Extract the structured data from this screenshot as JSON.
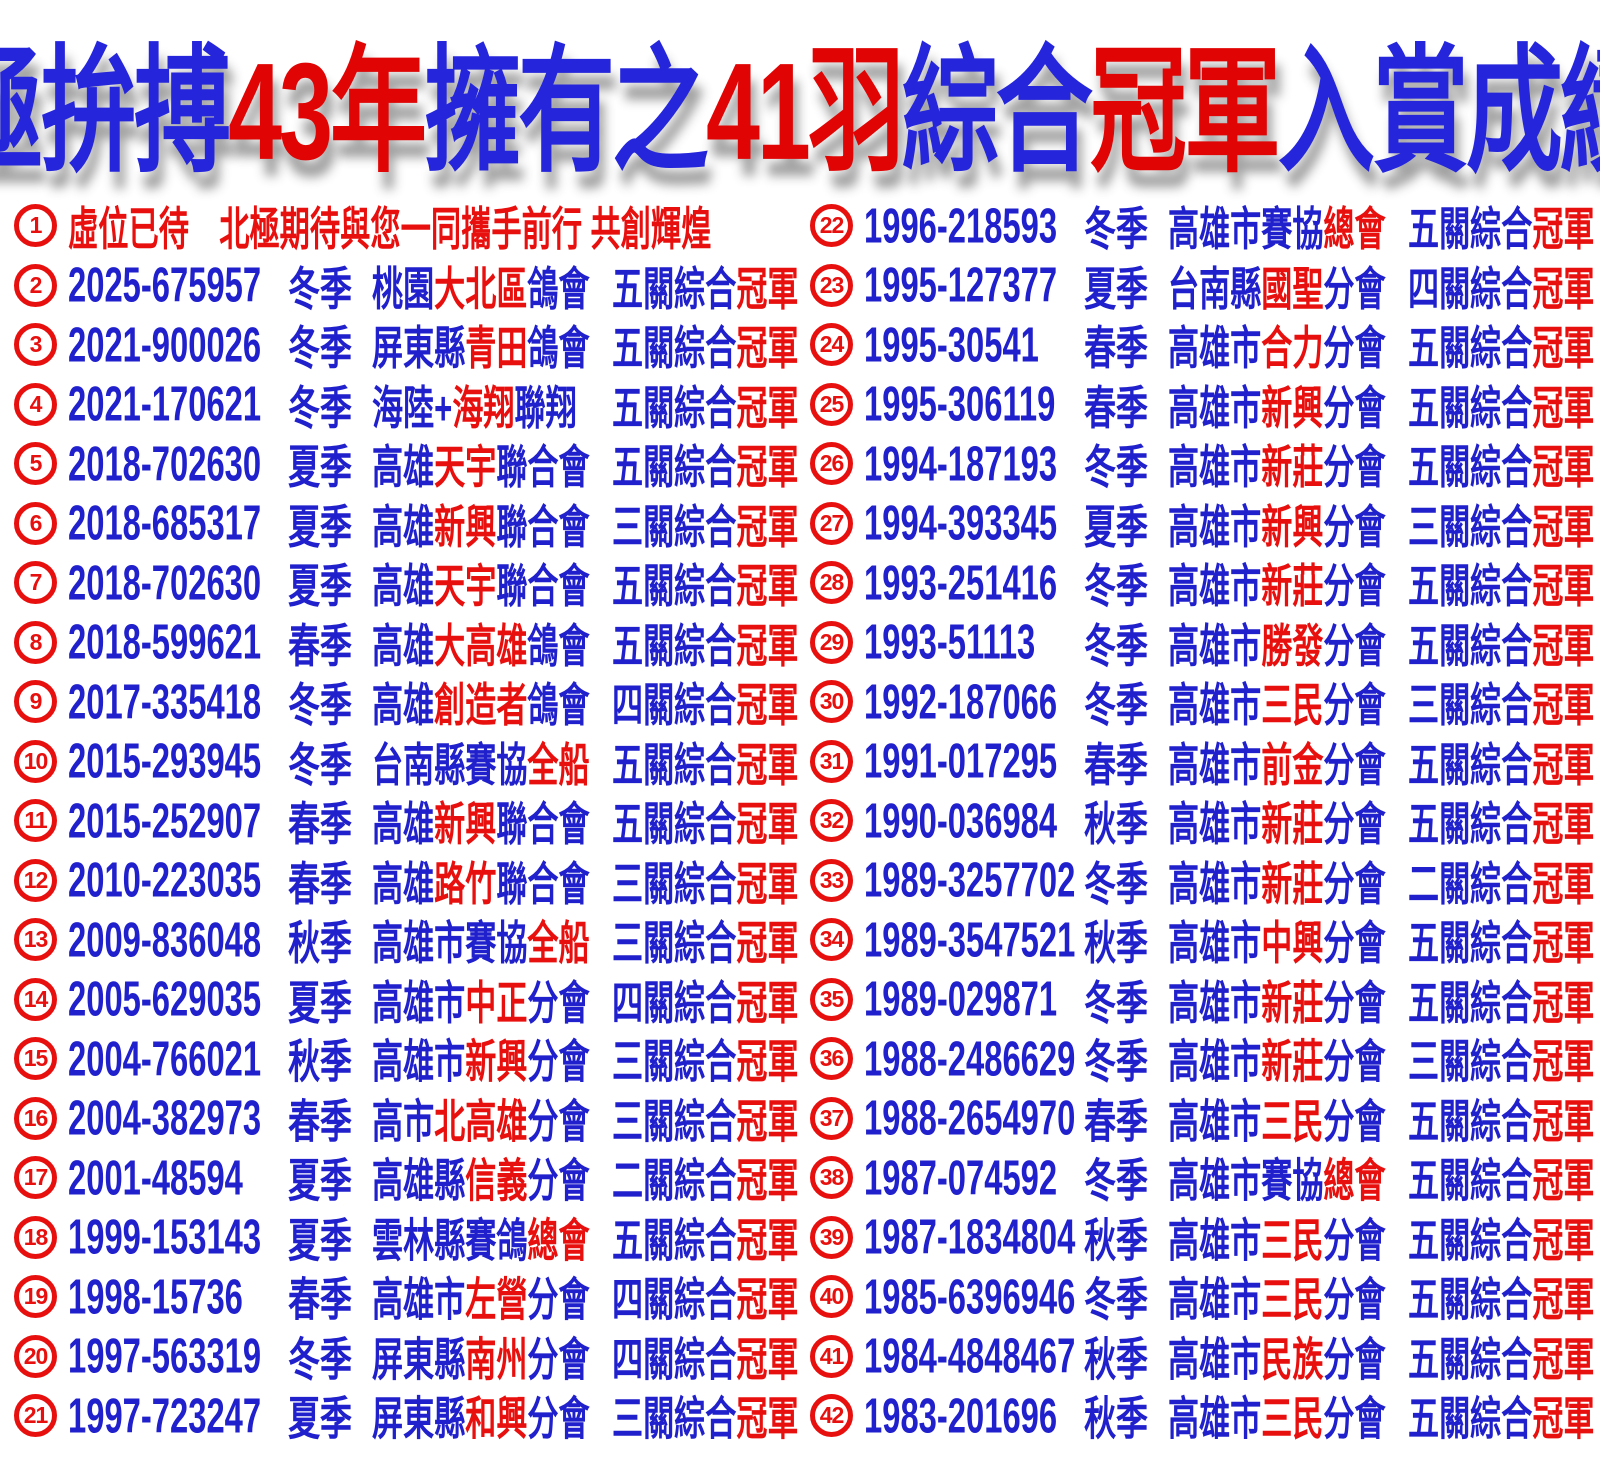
{
  "colors": {
    "blue": "#2020cc",
    "red": "#e8100e",
    "title_blue": "#2525dc",
    "title_red": "#e00404"
  },
  "title": {
    "segments": [
      [
        "北極拚搏",
        "b"
      ],
      [
        "43年",
        "r"
      ],
      [
        "擁有之",
        "b"
      ],
      [
        "41羽",
        "r"
      ],
      [
        "綜合",
        "b"
      ],
      [
        "冠軍",
        "r"
      ],
      [
        "入賞成績鴿",
        "b"
      ]
    ]
  },
  "entries": [
    {
      "num": "1",
      "message": [
        [
          "虛位已待　北極期待與您一同攜手前行 共創輝煌",
          "r"
        ]
      ]
    },
    {
      "num": "2",
      "id": "2025-675957",
      "season": "冬季",
      "org": [
        [
          "桃園",
          "b"
        ],
        [
          "大北區",
          "r"
        ],
        [
          "鴿會",
          "b"
        ]
      ],
      "award": [
        [
          "五關綜合",
          "b"
        ],
        [
          "冠軍",
          "r"
        ]
      ]
    },
    {
      "num": "3",
      "id": "2021-900026",
      "season": "冬季",
      "org": [
        [
          "屏東縣",
          "b"
        ],
        [
          "青田",
          "r"
        ],
        [
          "鴿會",
          "b"
        ]
      ],
      "award": [
        [
          "五關綜合",
          "b"
        ],
        [
          "冠軍",
          "r"
        ]
      ]
    },
    {
      "num": "4",
      "id": "2021-170621",
      "season": "冬季",
      "org": [
        [
          "海陸+",
          "b"
        ],
        [
          "海翔",
          "r"
        ],
        [
          "聯翔",
          "b"
        ]
      ],
      "award": [
        [
          "五關綜合",
          "b"
        ],
        [
          "冠軍",
          "r"
        ]
      ]
    },
    {
      "num": "5",
      "id": "2018-702630",
      "season": "夏季",
      "org": [
        [
          "高雄",
          "b"
        ],
        [
          "天宇",
          "r"
        ],
        [
          "聯合會",
          "b"
        ]
      ],
      "award": [
        [
          "五關綜合",
          "b"
        ],
        [
          "冠軍",
          "r"
        ]
      ]
    },
    {
      "num": "6",
      "id": "2018-685317",
      "season": "夏季",
      "org": [
        [
          "高雄",
          "b"
        ],
        [
          "新興",
          "r"
        ],
        [
          "聯合會",
          "b"
        ]
      ],
      "award": [
        [
          "三關綜合",
          "b"
        ],
        [
          "冠軍",
          "r"
        ]
      ]
    },
    {
      "num": "7",
      "id": "2018-702630",
      "season": "夏季",
      "org": [
        [
          "高雄",
          "b"
        ],
        [
          "天宇",
          "r"
        ],
        [
          "聯合會",
          "b"
        ]
      ],
      "award": [
        [
          "五關綜合",
          "b"
        ],
        [
          "冠軍",
          "r"
        ]
      ]
    },
    {
      "num": "8",
      "id": "2018-599621",
      "season": "春季",
      "org": [
        [
          "高雄",
          "b"
        ],
        [
          "大高雄",
          "r"
        ],
        [
          "鴿會",
          "b"
        ]
      ],
      "award": [
        [
          "五關綜合",
          "b"
        ],
        [
          "冠軍",
          "r"
        ]
      ]
    },
    {
      "num": "9",
      "id": "2017-335418",
      "season": "冬季",
      "org": [
        [
          "高雄",
          "b"
        ],
        [
          "創造者",
          "r"
        ],
        [
          "鴿會",
          "b"
        ]
      ],
      "award": [
        [
          "四關綜合",
          "b"
        ],
        [
          "冠軍",
          "r"
        ]
      ]
    },
    {
      "num": "10",
      "id": "2015-293945",
      "season": "冬季",
      "org": [
        [
          "台南縣賽協",
          "b"
        ],
        [
          "全船",
          "r"
        ]
      ],
      "award": [
        [
          "五關綜合",
          "b"
        ],
        [
          "冠軍",
          "r"
        ]
      ]
    },
    {
      "num": "11",
      "id": "2015-252907",
      "season": "春季",
      "org": [
        [
          "高雄",
          "b"
        ],
        [
          "新興",
          "r"
        ],
        [
          "聯合會",
          "b"
        ]
      ],
      "award": [
        [
          "五關綜合",
          "b"
        ],
        [
          "冠軍",
          "r"
        ]
      ]
    },
    {
      "num": "12",
      "id": "2010-223035",
      "season": "春季",
      "org": [
        [
          "高雄",
          "b"
        ],
        [
          "路竹",
          "r"
        ],
        [
          "聯合會",
          "b"
        ]
      ],
      "award": [
        [
          "三關綜合",
          "b"
        ],
        [
          "冠軍",
          "r"
        ]
      ]
    },
    {
      "num": "13",
      "id": "2009-836048",
      "season": "秋季",
      "org": [
        [
          "高雄市賽協",
          "b"
        ],
        [
          "全船",
          "r"
        ]
      ],
      "award": [
        [
          "三關綜合",
          "b"
        ],
        [
          "冠軍",
          "r"
        ]
      ]
    },
    {
      "num": "14",
      "id": "2005-629035",
      "season": "夏季",
      "org": [
        [
          "高雄市",
          "b"
        ],
        [
          "中正",
          "r"
        ],
        [
          "分會",
          "b"
        ]
      ],
      "award": [
        [
          "四關綜合",
          "b"
        ],
        [
          "冠軍",
          "r"
        ]
      ]
    },
    {
      "num": "15",
      "id": "2004-766021",
      "season": "秋季",
      "org": [
        [
          "高雄市",
          "b"
        ],
        [
          "新興",
          "r"
        ],
        [
          "分會",
          "b"
        ]
      ],
      "award": [
        [
          "三關綜合",
          "b"
        ],
        [
          "冠軍",
          "r"
        ]
      ]
    },
    {
      "num": "16",
      "id": "2004-382973",
      "season": "春季",
      "org": [
        [
          "高市",
          "b"
        ],
        [
          "北高雄",
          "r"
        ],
        [
          "分會",
          "b"
        ]
      ],
      "award": [
        [
          "三關綜合",
          "b"
        ],
        [
          "冠軍",
          "r"
        ]
      ]
    },
    {
      "num": "17",
      "id": "2001-48594",
      "season": "夏季",
      "org": [
        [
          "高雄縣",
          "b"
        ],
        [
          "信義",
          "r"
        ],
        [
          "分會",
          "b"
        ]
      ],
      "award": [
        [
          "二關綜合",
          "b"
        ],
        [
          "冠軍",
          "r"
        ]
      ]
    },
    {
      "num": "18",
      "id": "1999-153143",
      "season": "夏季",
      "org": [
        [
          "雲林縣賽鴿",
          "b"
        ],
        [
          "總會",
          "r"
        ]
      ],
      "award": [
        [
          "五關綜合",
          "b"
        ],
        [
          "冠軍",
          "r"
        ]
      ]
    },
    {
      "num": "19",
      "id": "1998-15736",
      "season": "春季",
      "org": [
        [
          "高雄市",
          "b"
        ],
        [
          "左營",
          "r"
        ],
        [
          "分會",
          "b"
        ]
      ],
      "award": [
        [
          "四關綜合",
          "b"
        ],
        [
          "冠軍",
          "r"
        ]
      ]
    },
    {
      "num": "20",
      "id": "1997-563319",
      "season": "冬季",
      "org": [
        [
          "屏東縣",
          "b"
        ],
        [
          "南州",
          "r"
        ],
        [
          "分會",
          "b"
        ]
      ],
      "award": [
        [
          "四關綜合",
          "b"
        ],
        [
          "冠軍",
          "r"
        ]
      ]
    },
    {
      "num": "21",
      "id": "1997-723247",
      "season": "夏季",
      "org": [
        [
          "屏東縣",
          "b"
        ],
        [
          "和興",
          "r"
        ],
        [
          "分會",
          "b"
        ]
      ],
      "award": [
        [
          "三關綜合",
          "b"
        ],
        [
          "冠軍",
          "r"
        ]
      ]
    },
    {
      "num": "22",
      "id": "1996-218593",
      "season": "冬季",
      "org": [
        [
          "高雄市賽協",
          "b"
        ],
        [
          "總會",
          "r"
        ]
      ],
      "award": [
        [
          "五關綜合",
          "b"
        ],
        [
          "冠軍",
          "r"
        ]
      ]
    },
    {
      "num": "23",
      "id": "1995-127377",
      "season": "夏季",
      "org": [
        [
          "台南縣",
          "b"
        ],
        [
          "國聖",
          "r"
        ],
        [
          "分會",
          "b"
        ]
      ],
      "award": [
        [
          "四關綜合",
          "b"
        ],
        [
          "冠軍",
          "r"
        ]
      ]
    },
    {
      "num": "24",
      "id": "1995-30541",
      "season": "春季",
      "org": [
        [
          "高雄市",
          "b"
        ],
        [
          "合力",
          "r"
        ],
        [
          "分會",
          "b"
        ]
      ],
      "award": [
        [
          "五關綜合",
          "b"
        ],
        [
          "冠軍",
          "r"
        ]
      ]
    },
    {
      "num": "25",
      "id": "1995-306119",
      "season": "春季",
      "org": [
        [
          "高雄市",
          "b"
        ],
        [
          "新興",
          "r"
        ],
        [
          "分會",
          "b"
        ]
      ],
      "award": [
        [
          "五關綜合",
          "b"
        ],
        [
          "冠軍",
          "r"
        ]
      ]
    },
    {
      "num": "26",
      "id": "1994-187193",
      "season": "冬季",
      "org": [
        [
          "高雄市",
          "b"
        ],
        [
          "新莊",
          "r"
        ],
        [
          "分會",
          "b"
        ]
      ],
      "award": [
        [
          "五關綜合",
          "b"
        ],
        [
          "冠軍",
          "r"
        ]
      ]
    },
    {
      "num": "27",
      "id": "1994-393345",
      "season": "夏季",
      "org": [
        [
          "高雄市",
          "b"
        ],
        [
          "新興",
          "r"
        ],
        [
          "分會",
          "b"
        ]
      ],
      "award": [
        [
          "三關綜合",
          "b"
        ],
        [
          "冠軍",
          "r"
        ]
      ]
    },
    {
      "num": "28",
      "id": "1993-251416",
      "season": "冬季",
      "org": [
        [
          "高雄市",
          "b"
        ],
        [
          "新莊",
          "r"
        ],
        [
          "分會",
          "b"
        ]
      ],
      "award": [
        [
          "五關綜合",
          "b"
        ],
        [
          "冠軍",
          "r"
        ]
      ]
    },
    {
      "num": "29",
      "id": "1993-51113",
      "season": "冬季",
      "org": [
        [
          "高雄市",
          "b"
        ],
        [
          "勝發",
          "r"
        ],
        [
          "分會",
          "b"
        ]
      ],
      "award": [
        [
          "五關綜合",
          "b"
        ],
        [
          "冠軍",
          "r"
        ]
      ]
    },
    {
      "num": "30",
      "id": "1992-187066",
      "season": "冬季",
      "org": [
        [
          "高雄市",
          "b"
        ],
        [
          "三民",
          "r"
        ],
        [
          "分會",
          "b"
        ]
      ],
      "award": [
        [
          "三關綜合",
          "b"
        ],
        [
          "冠軍",
          "r"
        ]
      ]
    },
    {
      "num": "31",
      "id": "1991-017295",
      "season": "春季",
      "org": [
        [
          "高雄市",
          "b"
        ],
        [
          "前金",
          "r"
        ],
        [
          "分會",
          "b"
        ]
      ],
      "award": [
        [
          "五關綜合",
          "b"
        ],
        [
          "冠軍",
          "r"
        ]
      ]
    },
    {
      "num": "32",
      "id": "1990-036984",
      "season": "秋季",
      "org": [
        [
          "高雄市",
          "b"
        ],
        [
          "新莊",
          "r"
        ],
        [
          "分會",
          "b"
        ]
      ],
      "award": [
        [
          "五關綜合",
          "b"
        ],
        [
          "冠軍",
          "r"
        ]
      ]
    },
    {
      "num": "33",
      "id": "1989-3257702",
      "season": "冬季",
      "org": [
        [
          "高雄市",
          "b"
        ],
        [
          "新莊",
          "r"
        ],
        [
          "分會",
          "b"
        ]
      ],
      "award": [
        [
          "二關綜合",
          "b"
        ],
        [
          "冠軍",
          "r"
        ]
      ]
    },
    {
      "num": "34",
      "id": "1989-3547521",
      "season": "秋季",
      "org": [
        [
          "高雄市",
          "b"
        ],
        [
          "中興",
          "r"
        ],
        [
          "分會",
          "b"
        ]
      ],
      "award": [
        [
          "五關綜合",
          "b"
        ],
        [
          "冠軍",
          "r"
        ]
      ]
    },
    {
      "num": "35",
      "id": "1989-029871",
      "season": "冬季",
      "org": [
        [
          "高雄市",
          "b"
        ],
        [
          "新莊",
          "r"
        ],
        [
          "分會",
          "b"
        ]
      ],
      "award": [
        [
          "五關綜合",
          "b"
        ],
        [
          "冠軍",
          "r"
        ]
      ]
    },
    {
      "num": "36",
      "id": "1988-2486629",
      "season": "冬季",
      "org": [
        [
          "高雄市",
          "b"
        ],
        [
          "新莊",
          "r"
        ],
        [
          "分會",
          "b"
        ]
      ],
      "award": [
        [
          "三關綜合",
          "b"
        ],
        [
          "冠軍",
          "r"
        ]
      ]
    },
    {
      "num": "37",
      "id": "1988-2654970",
      "season": "春季",
      "org": [
        [
          "高雄市",
          "b"
        ],
        [
          "三民",
          "r"
        ],
        [
          "分會",
          "b"
        ]
      ],
      "award": [
        [
          "五關綜合",
          "b"
        ],
        [
          "冠軍",
          "r"
        ]
      ]
    },
    {
      "num": "38",
      "id": "1987-074592",
      "season": "冬季",
      "org": [
        [
          "高雄市賽協",
          "b"
        ],
        [
          "總會",
          "r"
        ]
      ],
      "award": [
        [
          "五關綜合",
          "b"
        ],
        [
          "冠軍",
          "r"
        ]
      ]
    },
    {
      "num": "39",
      "id": "1987-1834804",
      "season": "秋季",
      "org": [
        [
          "高雄市",
          "b"
        ],
        [
          "三民",
          "r"
        ],
        [
          "分會",
          "b"
        ]
      ],
      "award": [
        [
          "五關綜合",
          "b"
        ],
        [
          "冠軍",
          "r"
        ]
      ]
    },
    {
      "num": "40",
      "id": "1985-6396946",
      "season": "冬季",
      "org": [
        [
          "高雄市",
          "b"
        ],
        [
          "三民",
          "r"
        ],
        [
          "分會",
          "b"
        ]
      ],
      "award": [
        [
          "五關綜合",
          "b"
        ],
        [
          "冠軍",
          "r"
        ]
      ]
    },
    {
      "num": "41",
      "id": "1984-4848467",
      "season": "秋季",
      "org": [
        [
          "高雄市",
          "b"
        ],
        [
          "民族",
          "r"
        ],
        [
          "分會",
          "b"
        ]
      ],
      "award": [
        [
          "五關綜合",
          "b"
        ],
        [
          "冠軍",
          "r"
        ]
      ]
    },
    {
      "num": "42",
      "id": "1983-201696",
      "season": "秋季",
      "org": [
        [
          "高雄市",
          "b"
        ],
        [
          "三民",
          "r"
        ],
        [
          "分會",
          "b"
        ]
      ],
      "award": [
        [
          "五關綜合",
          "b"
        ],
        [
          "冠軍",
          "r"
        ]
      ]
    }
  ]
}
